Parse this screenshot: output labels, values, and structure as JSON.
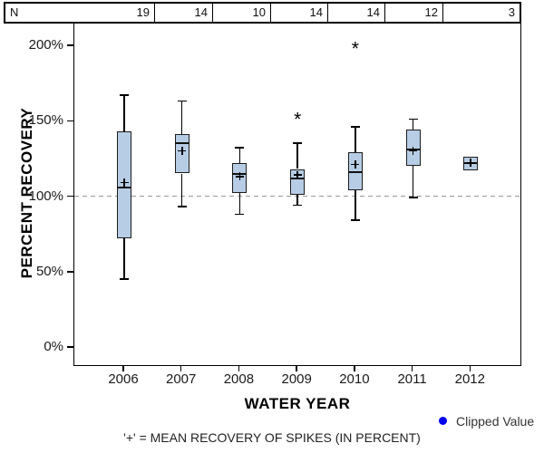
{
  "n_row": {
    "label": "N",
    "counts": [
      "19",
      "14",
      "10",
      "14",
      "14",
      "12",
      "3"
    ]
  },
  "chart_data": {
    "type": "boxplot",
    "title": "",
    "xlabel": "WATER YEAR",
    "ylabel": "PERCENT RECOVERY",
    "categories": [
      "2006",
      "2007",
      "2008",
      "2009",
      "2010",
      "2011",
      "2012"
    ],
    "n_per_category": [
      19,
      14,
      10,
      14,
      14,
      12,
      3
    ],
    "y_ticks": [
      {
        "value": 0,
        "label": "0%"
      },
      {
        "value": 50,
        "label": "50%"
      },
      {
        "value": 100,
        "label": "100%"
      },
      {
        "value": 150,
        "label": "150%"
      },
      {
        "value": 200,
        "label": "200%"
      }
    ],
    "ylim": [
      -13,
      214
    ],
    "grid": false,
    "reference_line_value": 100,
    "series": [
      {
        "category": "2006",
        "n": 19,
        "whisker_low": 45,
        "q1": 72,
        "median": 106,
        "mean": 109,
        "q3": 143,
        "whisker_high": 167,
        "outliers": []
      },
      {
        "category": "2007",
        "n": 14,
        "whisker_low": 93,
        "q1": 115,
        "median": 135,
        "mean": 130,
        "q3": 141,
        "whisker_high": 163,
        "outliers": []
      },
      {
        "category": "2008",
        "n": 10,
        "whisker_low": 88,
        "q1": 102,
        "median": 115,
        "mean": 113,
        "q3": 122,
        "whisker_high": 132,
        "outliers": []
      },
      {
        "category": "2009",
        "n": 14,
        "whisker_low": 94,
        "q1": 101,
        "median": 112,
        "mean": 114,
        "q3": 118,
        "whisker_high": 135,
        "outliers": [
          150
        ]
      },
      {
        "category": "2010",
        "n": 14,
        "whisker_low": 84,
        "q1": 104,
        "median": 116,
        "mean": 121,
        "q3": 129,
        "whisker_high": 146,
        "outliers": [
          197
        ]
      },
      {
        "category": "2011",
        "n": 12,
        "whisker_low": 99,
        "q1": 120,
        "median": 131,
        "mean": 130,
        "q3": 144,
        "whisker_high": 151,
        "outliers": []
      },
      {
        "category": "2012",
        "n": 3,
        "whisker_low": 117,
        "q1": 117,
        "median": 122,
        "mean": 122,
        "q3": 126,
        "whisker_high": 126,
        "outliers": []
      }
    ]
  },
  "legend": {
    "label": "Clipped Value"
  },
  "footnote": "'+' = MEAN RECOVERY OF SPIKES (IN PERCENT)",
  "colors": {
    "box_fill": "#b7cde5",
    "box_border": "#1d1d1d",
    "line": "#000000",
    "median": "#111111",
    "reference_line": "#999999",
    "outlier": "#000000",
    "clipped_marker": "#0000ee",
    "axis": "#000000"
  }
}
